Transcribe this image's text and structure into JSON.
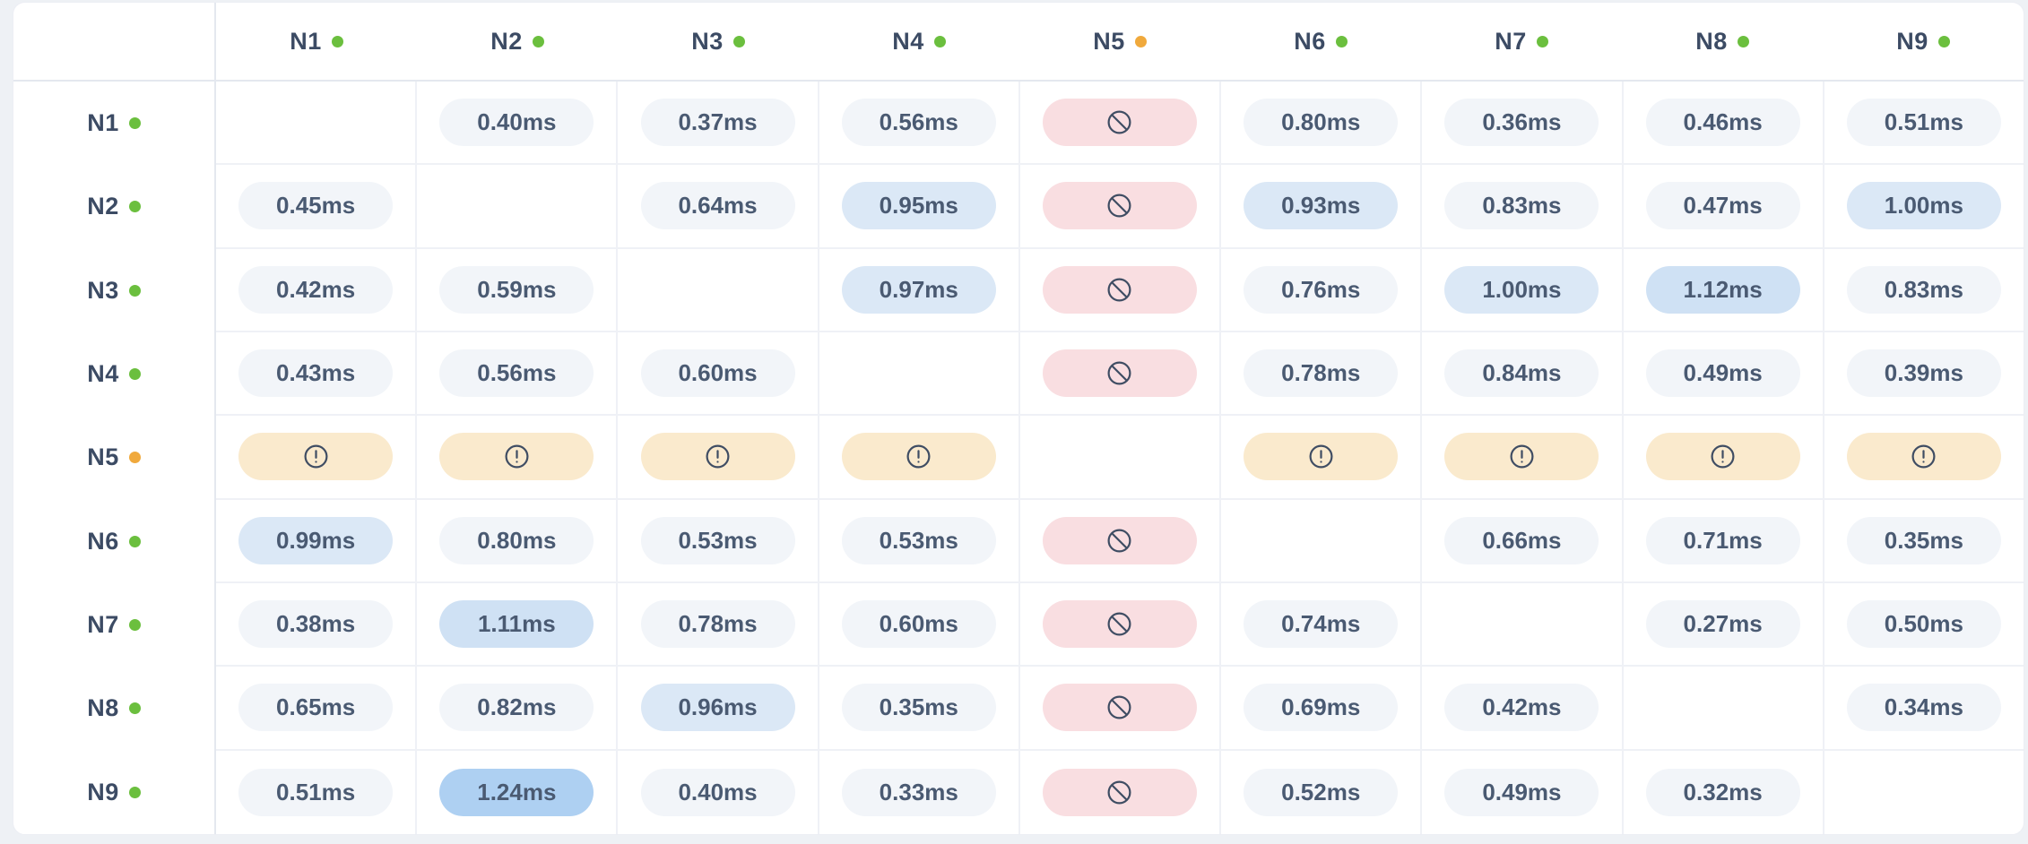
{
  "colors": {
    "page_bg": "#eef1f5",
    "card_bg": "#ffffff",
    "grid_line": "#eff1f6",
    "strong_line": "#e4e8ef",
    "label_text": "#3c4b64",
    "value_text": "#4a5a72",
    "pill_bg": "#f2f5f9",
    "pill_blue_light": "#dbe8f6",
    "pill_blue_mid": "#cfe1f4",
    "pill_blue_strong": "#aed0f2",
    "pill_blocked_bg": "#f9dee1",
    "pill_warn_bg": "#faeacd",
    "icon_stroke": "#3f4d63",
    "status_online": "#6bbf3e",
    "status_warning": "#f0a93c"
  },
  "heat_thresholds": {
    "light": 0.93,
    "mid": 1.05,
    "strong": 1.2
  },
  "icons": {
    "blocked": "ban-icon",
    "warning": "alert-circle-icon",
    "status": "status-dot-icon"
  },
  "matrix": {
    "columns": [
      {
        "label": "N1",
        "status": "online"
      },
      {
        "label": "N2",
        "status": "online"
      },
      {
        "label": "N3",
        "status": "online"
      },
      {
        "label": "N4",
        "status": "online"
      },
      {
        "label": "N5",
        "status": "warning"
      },
      {
        "label": "N6",
        "status": "online"
      },
      {
        "label": "N7",
        "status": "online"
      },
      {
        "label": "N8",
        "status": "online"
      },
      {
        "label": "N9",
        "status": "online"
      }
    ],
    "rows": [
      {
        "label": "N1",
        "status": "online"
      },
      {
        "label": "N2",
        "status": "online"
      },
      {
        "label": "N3",
        "status": "online"
      },
      {
        "label": "N4",
        "status": "online"
      },
      {
        "label": "N5",
        "status": "warning"
      },
      {
        "label": "N6",
        "status": "online"
      },
      {
        "label": "N7",
        "status": "online"
      },
      {
        "label": "N8",
        "status": "online"
      },
      {
        "label": "N9",
        "status": "online"
      }
    ],
    "cells": [
      [
        {
          "type": "self"
        },
        {
          "type": "latency",
          "value": "0.40ms"
        },
        {
          "type": "latency",
          "value": "0.37ms"
        },
        {
          "type": "latency",
          "value": "0.56ms"
        },
        {
          "type": "blocked"
        },
        {
          "type": "latency",
          "value": "0.80ms"
        },
        {
          "type": "latency",
          "value": "0.36ms"
        },
        {
          "type": "latency",
          "value": "0.46ms"
        },
        {
          "type": "latency",
          "value": "0.51ms"
        }
      ],
      [
        {
          "type": "latency",
          "value": "0.45ms"
        },
        {
          "type": "self"
        },
        {
          "type": "latency",
          "value": "0.64ms"
        },
        {
          "type": "latency",
          "value": "0.95ms"
        },
        {
          "type": "blocked"
        },
        {
          "type": "latency",
          "value": "0.93ms"
        },
        {
          "type": "latency",
          "value": "0.83ms"
        },
        {
          "type": "latency",
          "value": "0.47ms"
        },
        {
          "type": "latency",
          "value": "1.00ms"
        }
      ],
      [
        {
          "type": "latency",
          "value": "0.42ms"
        },
        {
          "type": "latency",
          "value": "0.59ms"
        },
        {
          "type": "self"
        },
        {
          "type": "latency",
          "value": "0.97ms"
        },
        {
          "type": "blocked"
        },
        {
          "type": "latency",
          "value": "0.76ms"
        },
        {
          "type": "latency",
          "value": "1.00ms"
        },
        {
          "type": "latency",
          "value": "1.12ms"
        },
        {
          "type": "latency",
          "value": "0.83ms"
        }
      ],
      [
        {
          "type": "latency",
          "value": "0.43ms"
        },
        {
          "type": "latency",
          "value": "0.56ms"
        },
        {
          "type": "latency",
          "value": "0.60ms"
        },
        {
          "type": "self"
        },
        {
          "type": "blocked"
        },
        {
          "type": "latency",
          "value": "0.78ms"
        },
        {
          "type": "latency",
          "value": "0.84ms"
        },
        {
          "type": "latency",
          "value": "0.49ms"
        },
        {
          "type": "latency",
          "value": "0.39ms"
        }
      ],
      [
        {
          "type": "warning"
        },
        {
          "type": "warning"
        },
        {
          "type": "warning"
        },
        {
          "type": "warning"
        },
        {
          "type": "self"
        },
        {
          "type": "warning"
        },
        {
          "type": "warning"
        },
        {
          "type": "warning"
        },
        {
          "type": "warning"
        }
      ],
      [
        {
          "type": "latency",
          "value": "0.99ms"
        },
        {
          "type": "latency",
          "value": "0.80ms"
        },
        {
          "type": "latency",
          "value": "0.53ms"
        },
        {
          "type": "latency",
          "value": "0.53ms"
        },
        {
          "type": "blocked"
        },
        {
          "type": "self"
        },
        {
          "type": "latency",
          "value": "0.66ms"
        },
        {
          "type": "latency",
          "value": "0.71ms"
        },
        {
          "type": "latency",
          "value": "0.35ms"
        }
      ],
      [
        {
          "type": "latency",
          "value": "0.38ms"
        },
        {
          "type": "latency",
          "value": "1.11ms"
        },
        {
          "type": "latency",
          "value": "0.78ms"
        },
        {
          "type": "latency",
          "value": "0.60ms"
        },
        {
          "type": "blocked"
        },
        {
          "type": "latency",
          "value": "0.74ms"
        },
        {
          "type": "self"
        },
        {
          "type": "latency",
          "value": "0.27ms"
        },
        {
          "type": "latency",
          "value": "0.50ms"
        }
      ],
      [
        {
          "type": "latency",
          "value": "0.65ms"
        },
        {
          "type": "latency",
          "value": "0.82ms"
        },
        {
          "type": "latency",
          "value": "0.96ms"
        },
        {
          "type": "latency",
          "value": "0.35ms"
        },
        {
          "type": "blocked"
        },
        {
          "type": "latency",
          "value": "0.69ms"
        },
        {
          "type": "latency",
          "value": "0.42ms"
        },
        {
          "type": "self"
        },
        {
          "type": "latency",
          "value": "0.34ms"
        }
      ],
      [
        {
          "type": "latency",
          "value": "0.51ms"
        },
        {
          "type": "latency",
          "value": "1.24ms"
        },
        {
          "type": "latency",
          "value": "0.40ms"
        },
        {
          "type": "latency",
          "value": "0.33ms"
        },
        {
          "type": "blocked"
        },
        {
          "type": "latency",
          "value": "0.52ms"
        },
        {
          "type": "latency",
          "value": "0.49ms"
        },
        {
          "type": "latency",
          "value": "0.32ms"
        },
        {
          "type": "self"
        }
      ]
    ]
  }
}
